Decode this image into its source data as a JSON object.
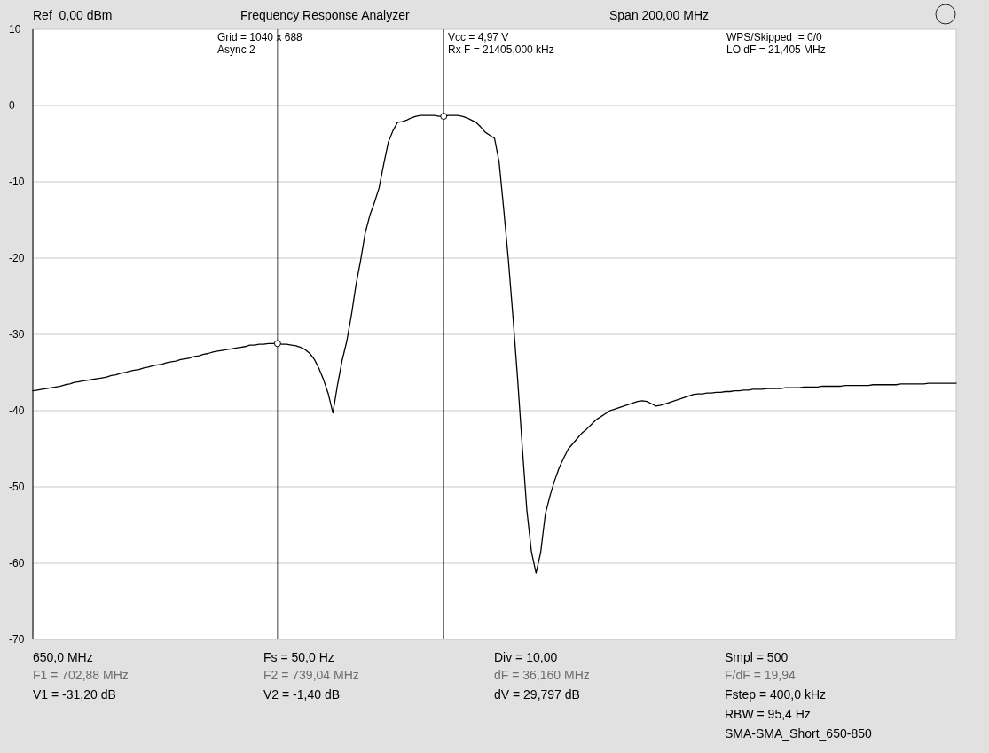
{
  "chart_data": {
    "type": "line",
    "title": "Frequency Response Analyzer",
    "categories": [
      null,
      null,
      null,
      null,
      null,
      null,
      null,
      null,
      null,
      null,
      null,
      null,
      null,
      null,
      null,
      null,
      null,
      null,
      null,
      null,
      null,
      null,
      null,
      null,
      null,
      null,
      null,
      null,
      null,
      null,
      null,
      null,
      null,
      null,
      null,
      null,
      null,
      null,
      null,
      null,
      null,
      null,
      null,
      null,
      null,
      null,
      null,
      null,
      null,
      null,
      null,
      null,
      null,
      null,
      null,
      null,
      null,
      null,
      null,
      null,
      null,
      null,
      null,
      null,
      null,
      null,
      null,
      null,
      null,
      null,
      null,
      null,
      null,
      null,
      null,
      null,
      null,
      null,
      null,
      null,
      null,
      null,
      null,
      null,
      null,
      null,
      null,
      null,
      null,
      null,
      null,
      null,
      null,
      null,
      null,
      null,
      null,
      null,
      null,
      null,
      null,
      null,
      null,
      null,
      null,
      null,
      null,
      null,
      null,
      null,
      null,
      null,
      null,
      null,
      null,
      null,
      null,
      null,
      null,
      null,
      null,
      null,
      null,
      null,
      null,
      null,
      null,
      null,
      null,
      null,
      null,
      null,
      null,
      null,
      null,
      null,
      null,
      null,
      null,
      null,
      null,
      null,
      null,
      null,
      null,
      null,
      null,
      null,
      null,
      null,
      null,
      null,
      null,
      null,
      null,
      null,
      null,
      null,
      null,
      null,
      null,
      null,
      null,
      null,
      null,
      null,
      null,
      null,
      null,
      null,
      null,
      null,
      null,
      null,
      null,
      null,
      null,
      null,
      null,
      null,
      null,
      null,
      null,
      null,
      null,
      null,
      null,
      null,
      null,
      null,
      null,
      null,
      null,
      null,
      null,
      null,
      null,
      null,
      null,
      null,
      null
    ],
    "ylim": [
      -70,
      10
    ],
    "yticks": [
      10,
      0,
      -10,
      -20,
      -30,
      -40,
      -50,
      -60,
      -70
    ],
    "grid": true,
    "tick_labels": "y",
    "series": [
      {
        "color": "#000000",
        "values": [
          -37.4,
          -37.3,
          -37.2,
          -37.1,
          -37.0,
          -36.9,
          -36.8,
          -36.6,
          -36.5,
          -36.3,
          -36.2,
          -36.1,
          -36.0,
          -35.9,
          -35.8,
          -35.7,
          -35.6,
          -35.4,
          -35.3,
          -35.1,
          -35.0,
          -34.8,
          -34.7,
          -34.6,
          -34.4,
          -34.3,
          -34.1,
          -34.0,
          -33.9,
          -33.7,
          -33.6,
          -33.5,
          -33.3,
          -33.2,
          -33.1,
          -32.9,
          -32.8,
          -32.6,
          -32.5,
          -32.3,
          -32.2,
          -32.1,
          -32.0,
          -31.9,
          -31.8,
          -31.7,
          -31.6,
          -31.4,
          -31.4,
          -31.3,
          -31.3,
          -31.2,
          -31.2,
          -31.2,
          -31.3,
          -31.3,
          -31.4,
          -31.5,
          -31.7,
          -32.0,
          -32.5,
          -33.3,
          -34.5,
          -36.0,
          -37.8,
          -40.3,
          -36.6,
          -33.4,
          -30.9,
          -27.5,
          -23.5,
          -20.3,
          -16.7,
          -14.4,
          -12.7,
          -10.8,
          -7.7,
          -4.8,
          -3.3,
          -2.2,
          -2.1,
          -1.9,
          -1.6,
          -1.4,
          -1.3,
          -1.3,
          -1.3,
          -1.3,
          -1.4,
          -1.4,
          -1.3,
          -1.3,
          -1.3,
          -1.4,
          -1.6,
          -1.9,
          -2.2,
          -2.8,
          -3.5,
          -3.9,
          -4.3,
          -7.4,
          -13.6,
          -20.2,
          -27.7,
          -35.8,
          -44.6,
          -53.0,
          -58.5,
          -61.3,
          -58.6,
          -53.6,
          -51.2,
          -49.2,
          -47.5,
          -46.2,
          -45.0,
          -44.3,
          -43.6,
          -42.9,
          -42.4,
          -41.8,
          -41.2,
          -40.8,
          -40.4,
          -40.0,
          -39.8,
          -39.6,
          -39.4,
          -39.2,
          -39.0,
          -38.8,
          -38.7,
          -38.8,
          -39.1,
          -39.4,
          -39.3,
          -39.1,
          -38.9,
          -38.7,
          -38.5,
          -38.3,
          -38.1,
          -37.9,
          -37.8,
          -37.8,
          -37.7,
          -37.7,
          -37.6,
          -37.6,
          -37.5,
          -37.5,
          -37.4,
          -37.4,
          -37.3,
          -37.3,
          -37.2,
          -37.2,
          -37.2,
          -37.1,
          -37.1,
          -37.1,
          -37.1,
          -37.0,
          -37.0,
          -37.0,
          -37.0,
          -36.9,
          -36.9,
          -36.9,
          -36.9,
          -36.8,
          -36.8,
          -36.8,
          -36.8,
          -36.8,
          -36.7,
          -36.7,
          -36.7,
          -36.7,
          -36.7,
          -36.7,
          -36.6,
          -36.6,
          -36.6,
          -36.6,
          -36.6,
          -36.6,
          -36.5,
          -36.5,
          -36.5,
          -36.5,
          -36.5,
          -36.5,
          -36.4,
          -36.4,
          -36.4,
          -36.4,
          -36.4,
          -36.4,
          -36.4
        ]
      },
      {
        "type": "scatter",
        "color": "#000000",
        "marker": "circle",
        "values": [
          null,
          null,
          null,
          null,
          null,
          null,
          null,
          null,
          null,
          null,
          null,
          null,
          null,
          null,
          null,
          null,
          null,
          null,
          null,
          null,
          null,
          null,
          null,
          null,
          null,
          null,
          null,
          null,
          null,
          null,
          null,
          null,
          null,
          null,
          null,
          null,
          null,
          null,
          null,
          null,
          null,
          null,
          null,
          null,
          null,
          null,
          null,
          null,
          null,
          null,
          null,
          null,
          null,
          -31.2,
          null,
          null,
          null,
          null,
          null,
          null,
          null,
          null,
          null,
          null,
          null,
          null,
          null,
          null,
          null,
          null,
          null,
          null,
          null,
          null,
          null,
          null,
          null,
          null,
          null,
          null,
          null,
          null,
          null,
          null,
          null,
          null,
          null,
          null,
          null,
          -1.4,
          null,
          null,
          null,
          null,
          null,
          null,
          null,
          null,
          null,
          null,
          null,
          null,
          null,
          null,
          null,
          null,
          null,
          null,
          null,
          null,
          null,
          null,
          null,
          null,
          null,
          null,
          null,
          null,
          null,
          null,
          null,
          null,
          null,
          null,
          null,
          null,
          null,
          null,
          null,
          null,
          null,
          null,
          null,
          null,
          null,
          null,
          null,
          null,
          null,
          null,
          null,
          null,
          null,
          null,
          null,
          null,
          null,
          null,
          null,
          null,
          null,
          null,
          null,
          null,
          null,
          null,
          null,
          null,
          null,
          null,
          null,
          null,
          null,
          null,
          null,
          null,
          null,
          null,
          null,
          null,
          null,
          null,
          null,
          null,
          null,
          null,
          null,
          null,
          null,
          null,
          null,
          null,
          null,
          null,
          null,
          null,
          null,
          null,
          null,
          null,
          null,
          null,
          null,
          null,
          null,
          null,
          null,
          null,
          null,
          null,
          null
        ]
      }
    ],
    "annotations": [
      "Ref  0,00 dBm",
      "Span 200,00 MHz",
      "Grid = 1040 x 688",
      "Async 2",
      "Vcc = 4,97 V",
      "Rx F = 21405,000 kHz",
      "WPS/Skipped  = 0/0",
      "LO dF = 21,405 MHz",
      "650,0 MHz",
      "F1 = 702,88 MHz",
      "V1 = -31,20 dB",
      "Fs = 50,0 Hz",
      "F2 = 739,04 MHz",
      "V2 = -1,40 dB",
      "Div = 10,00",
      "dF = 36,160 MHz",
      "dV = 29,797 dB",
      "Smpl = 500",
      "F/dF = 19,94",
      "Fstep = 400,0 kHz",
      "RBW = 95,4 Hz",
      "SMA-SMA_Short_650-850"
    ]
  }
}
